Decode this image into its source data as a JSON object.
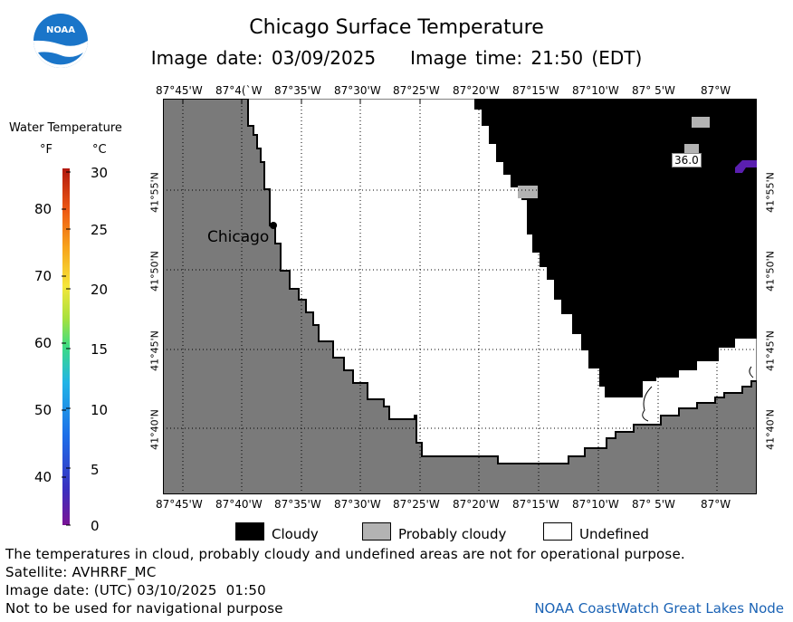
{
  "header": {
    "title": "Chicago Surface Temperature",
    "image_date_label": "Image date: 03/09/2025",
    "image_time_label": "Image time: 21:50 (EDT)"
  },
  "logo": {
    "text": "NOAA",
    "icon": "noaa-logo"
  },
  "legend": {
    "title": "Water Temperature",
    "unit_f": "°F",
    "unit_c": "°C",
    "f_ticks": [
      "80",
      "70",
      "60",
      "50",
      "40"
    ],
    "c_ticks": [
      "30",
      "25",
      "20",
      "15",
      "10",
      "5",
      "0"
    ],
    "colors": [
      "#7a1496",
      "#3a2fbf",
      "#1d6ee8",
      "#22b4e6",
      "#3ddc84",
      "#a8e13d",
      "#f5e63a",
      "#f7a21b",
      "#ee5a14",
      "#b2180e"
    ]
  },
  "map": {
    "lon_labels": [
      "87°45'W",
      "87°40'W",
      "87°35'W",
      "87°30'W",
      "87°25'W",
      "87°20'W",
      "87°15'W",
      "87°10'W",
      "87° 5'W",
      "87°W"
    ],
    "lon_labels_top": [
      "87°45'W",
      "87°4(`W",
      "87°35'W",
      "87°30'W",
      "87°25'W",
      "87°20'W",
      "87°15'W",
      "87°10'W",
      "87° 5'W",
      "87°W"
    ],
    "lat_labels": [
      "41°55'N",
      "41°50'N",
      "41°45'N",
      "41°40'N"
    ],
    "city_label": "Chicago",
    "data_value_label": "36.0",
    "colors": {
      "land": "#7a7a7a",
      "cloudy": "#000000",
      "probably_cloudy": "#b3b3b3",
      "undefined": "#ffffff",
      "cold_water": "#5a1fb0"
    }
  },
  "key": {
    "cloudy": "Cloudy",
    "probably_cloudy": "Probably cloudy",
    "undefined": "Undefined"
  },
  "footer": {
    "disclaimer": "The temperatures in cloud, probably cloudy and undefined areas are not for operational purpose.",
    "satellite": "Satellite: AVHRRF_MC",
    "utc_date": "Image date: (UTC) 03/10/2025  01:50",
    "navigation": "Not to be used for navigational purpose",
    "node": "NOAA CoastWatch Great Lakes Node"
  }
}
